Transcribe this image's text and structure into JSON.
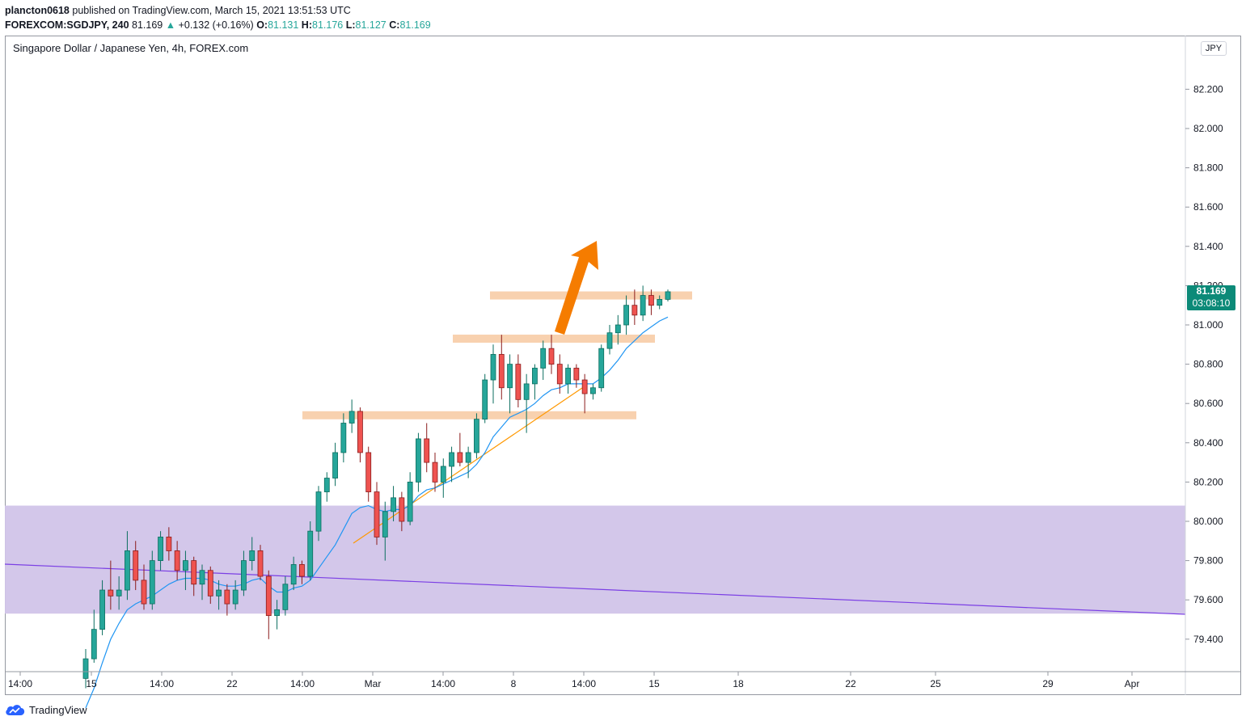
{
  "header": {
    "user": "plancton0618",
    "published": "published on TradingView.com, March 15, 2021 13:51:53 UTC",
    "symbol": "FOREXCOM:SGDJPY, 240",
    "last": "81.169",
    "change": "+0.132 (+0.16%)",
    "o_label": "O:",
    "o": "81.131",
    "h_label": "H:",
    "h": "81.176",
    "l_label": "L:",
    "l": "81.127",
    "c_label": "C:",
    "c": "81.169"
  },
  "pane_title": "Singapore Dollar / Japanese Yen, 4h, FOREX.com",
  "currency": "JPY",
  "price_badge": {
    "price": "81.169",
    "countdown": "03:08:10"
  },
  "footer": {
    "brand": "TradingView"
  },
  "colors": {
    "up": "#26a69a",
    "down": "#ef5350",
    "ema": "#2196f3",
    "zone": "#d1c4e9",
    "level": "#f7c9a1",
    "trend": "#ff9800",
    "arrow": "#f57c00"
  },
  "chart_data": {
    "type": "candlestick",
    "title": "Singapore Dollar / Japanese Yen, 4h, FOREX.com",
    "y_ticks": [
      "79.400",
      "79.600",
      "79.800",
      "80.000",
      "80.200",
      "80.400",
      "80.600",
      "80.800",
      "81.000",
      "81.200",
      "81.400",
      "81.600",
      "81.800",
      "82.000",
      "82.200"
    ],
    "x_ticks": [
      "14:00",
      "15",
      "14:00",
      "22",
      "14:00",
      "Mar",
      "14:00",
      "8",
      "14:00",
      "15",
      "18",
      "22",
      "25",
      "29",
      "Apr"
    ],
    "ylim": [
      79.22,
      82.55
    ],
    "last_price": 81.169,
    "support_zone": [
      79.53,
      80.08
    ],
    "resistance_levels": [
      81.15,
      80.93,
      80.54
    ],
    "ohlc": [
      [
        79.2,
        79.35,
        79.15,
        79.3
      ],
      [
        79.3,
        79.55,
        79.28,
        79.45
      ],
      [
        79.45,
        79.7,
        79.42,
        79.65
      ],
      [
        79.65,
        79.8,
        79.55,
        79.62
      ],
      [
        79.62,
        79.72,
        79.55,
        79.65
      ],
      [
        79.65,
        79.95,
        79.6,
        79.85
      ],
      [
        79.85,
        79.9,
        79.65,
        79.7
      ],
      [
        79.7,
        79.78,
        79.55,
        79.58
      ],
      [
        79.58,
        79.85,
        79.55,
        79.8
      ],
      [
        79.8,
        79.95,
        79.75,
        79.92
      ],
      [
        79.92,
        79.97,
        79.8,
        79.85
      ],
      [
        79.85,
        79.9,
        79.7,
        79.75
      ],
      [
        79.75,
        79.85,
        79.65,
        79.8
      ],
      [
        79.8,
        79.82,
        79.62,
        79.68
      ],
      [
        79.68,
        79.78,
        79.6,
        79.75
      ],
      [
        79.75,
        79.77,
        79.58,
        79.62
      ],
      [
        79.62,
        79.7,
        79.55,
        79.65
      ],
      [
        79.65,
        79.68,
        79.52,
        79.58
      ],
      [
        79.58,
        79.7,
        79.55,
        79.65
      ],
      [
        79.65,
        79.85,
        79.62,
        79.8
      ],
      [
        79.8,
        79.92,
        79.75,
        79.85
      ],
      [
        79.85,
        79.88,
        79.7,
        79.72
      ],
      [
        79.72,
        79.75,
        79.4,
        79.52
      ],
      [
        79.52,
        79.6,
        79.45,
        79.55
      ],
      [
        79.55,
        79.72,
        79.52,
        79.68
      ],
      [
        79.68,
        79.82,
        79.65,
        79.78
      ],
      [
        79.78,
        79.8,
        79.68,
        79.72
      ],
      [
        79.72,
        80.0,
        79.7,
        79.95
      ],
      [
        79.95,
        80.18,
        79.9,
        80.15
      ],
      [
        80.15,
        80.25,
        80.1,
        80.22
      ],
      [
        80.22,
        80.4,
        80.18,
        80.35
      ],
      [
        80.35,
        80.55,
        80.3,
        80.5
      ],
      [
        80.5,
        80.62,
        80.45,
        80.56
      ],
      [
        80.56,
        80.58,
        80.3,
        80.35
      ],
      [
        80.35,
        80.38,
        80.1,
        80.15
      ],
      [
        80.15,
        80.2,
        79.88,
        79.92
      ],
      [
        79.92,
        80.1,
        79.8,
        80.05
      ],
      [
        80.05,
        80.18,
        80.0,
        80.12
      ],
      [
        80.12,
        80.15,
        79.95,
        80.0
      ],
      [
        80.0,
        80.25,
        79.98,
        80.2
      ],
      [
        80.2,
        80.45,
        80.15,
        80.42
      ],
      [
        80.42,
        80.5,
        80.25,
        80.3
      ],
      [
        80.3,
        80.35,
        80.15,
        80.2
      ],
      [
        80.2,
        80.32,
        80.12,
        80.28
      ],
      [
        80.28,
        80.38,
        80.2,
        80.35
      ],
      [
        80.35,
        80.45,
        80.28,
        80.3
      ],
      [
        80.3,
        80.38,
        80.22,
        80.35
      ],
      [
        80.35,
        80.55,
        80.32,
        80.52
      ],
      [
        80.52,
        80.75,
        80.5,
        80.72
      ],
      [
        80.72,
        80.9,
        80.6,
        80.85
      ],
      [
        80.85,
        80.95,
        80.62,
        80.68
      ],
      [
        80.68,
        80.85,
        80.55,
        80.8
      ],
      [
        80.8,
        80.85,
        80.58,
        80.62
      ],
      [
        80.62,
        80.75,
        80.45,
        80.7
      ],
      [
        80.7,
        80.8,
        80.62,
        80.78
      ],
      [
        80.78,
        80.92,
        80.72,
        80.88
      ],
      [
        80.88,
        80.95,
        80.75,
        80.8
      ],
      [
        80.8,
        80.85,
        80.65,
        80.7
      ],
      [
        80.7,
        80.8,
        80.65,
        80.78
      ],
      [
        80.78,
        80.8,
        80.68,
        80.72
      ],
      [
        80.72,
        80.75,
        80.55,
        80.65
      ],
      [
        80.65,
        80.7,
        80.62,
        80.68
      ],
      [
        80.68,
        80.9,
        80.66,
        80.88
      ],
      [
        80.88,
        81.0,
        80.85,
        80.96
      ],
      [
        80.96,
        81.05,
        80.9,
        81.0
      ],
      [
        81.0,
        81.15,
        80.95,
        81.1
      ],
      [
        81.1,
        81.18,
        81.0,
        81.05
      ],
      [
        81.05,
        81.2,
        81.02,
        81.15
      ],
      [
        81.15,
        81.18,
        81.05,
        81.1
      ],
      [
        81.1,
        81.15,
        81.08,
        81.13
      ],
      [
        81.13,
        81.18,
        81.12,
        81.169
      ]
    ],
    "ema": [
      79.05,
      79.15,
      79.28,
      79.4,
      79.48,
      79.55,
      79.58,
      79.6,
      79.62,
      79.65,
      79.68,
      79.7,
      79.71,
      79.71,
      79.71,
      79.7,
      79.68,
      79.67,
      79.67,
      79.68,
      79.7,
      79.71,
      79.67,
      79.64,
      79.64,
      79.66,
      79.67,
      79.7,
      79.76,
      79.82,
      79.88,
      79.96,
      80.04,
      80.07,
      80.08,
      80.06,
      80.05,
      80.06,
      80.06,
      80.08,
      80.13,
      80.16,
      80.17,
      80.19,
      80.21,
      80.23,
      80.25,
      80.29,
      80.35,
      80.43,
      80.48,
      80.53,
      80.55,
      80.57,
      80.6,
      80.64,
      80.67,
      80.68,
      80.7,
      80.7,
      80.7,
      80.7,
      80.73,
      80.77,
      80.82,
      80.88,
      80.92,
      80.96,
      80.99,
      81.02,
      81.04
    ]
  }
}
